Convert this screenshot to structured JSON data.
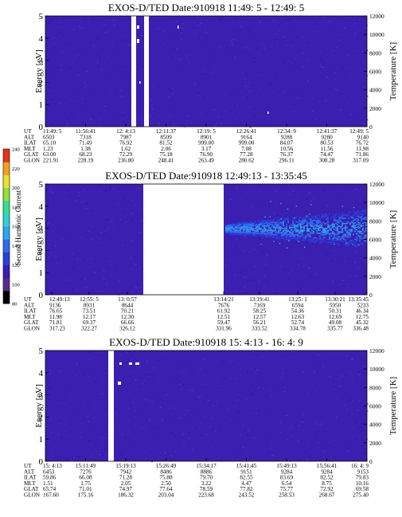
{
  "colors": {
    "background_cell": "#3a1fb0",
    "gap": "#ffffff",
    "scale": [
      "#000000",
      "#5a2b8f",
      "#3a1fb0",
      "#2a3fe0",
      "#2f6cf0",
      "#2aa8f0",
      "#2ed3d0",
      "#32e08a",
      "#8fe23a",
      "#e8e22a",
      "#f0a21e",
      "#e8321a"
    ]
  },
  "colorbar": {
    "label": "Second Harmonic Current",
    "ticks": [
      "80",
      "100",
      "120",
      "140",
      "160",
      "180",
      "200",
      "220",
      "240"
    ]
  },
  "panels": [
    {
      "title": "EXOS-D/TED   Date:910918   11:49: 5 - 12:49: 5",
      "ylabel": "Energy [eV]",
      "y2label": "Temperature [K]",
      "yticks": [
        "0",
        "1",
        "2",
        "3",
        "4",
        "5"
      ],
      "y2ticks": [
        "0",
        "2000",
        "4000",
        "6000",
        "8000",
        "10000",
        "12000"
      ],
      "row_labels": [
        "UT",
        "ALT",
        "ILAT",
        "MLT",
        "GLAT",
        "GLON"
      ],
      "columns": [
        [
          "11:49: 5",
          "6503",
          "65.10",
          "1.23",
          "63.00",
          "221.91"
        ],
        [
          "11:56:41",
          "7318",
          "71.49",
          "1.38",
          "68.23",
          "228.19"
        ],
        [
          "12: 4:13",
          "7987",
          "76.92",
          "1.62",
          "72.29",
          "236.80"
        ],
        [
          "12:11:37",
          "8509",
          "81.52",
          "2.06",
          "75.18",
          "248.41"
        ],
        [
          "12:19: 5",
          "8901",
          "999.00",
          "3.17",
          "76.90",
          "263.49"
        ],
        [
          "12:26:41",
          "9164",
          "999.00",
          "7.08",
          "77.28",
          "280.62"
        ],
        [
          "12:34: 9",
          "9288",
          "84.07",
          "10.56",
          "76.37",
          "296.11"
        ],
        [
          "12:41:37",
          "9280",
          "80.53",
          "11.56",
          "74.47",
          "308.28"
        ],
        [
          "12:49: 5",
          "9140",
          "76.72",
          "11.98",
          "71.86",
          "317.09"
        ]
      ]
    },
    {
      "title": "EXOS-D/TED   Date:910918   12:49:13 - 13:35:45",
      "ylabel": "Energy [eV]",
      "y2label": "Temperature [K]",
      "yticks": [
        "0",
        "1",
        "2",
        "3",
        "4",
        "5"
      ],
      "y2ticks": [
        "0",
        "2000",
        "4000",
        "6000",
        "8000",
        "10000",
        "12000"
      ],
      "row_labels": [
        "UT",
        "ALT",
        "ILAT",
        "MLT",
        "GLAT",
        "GLON"
      ],
      "columns": [
        [
          "12:49:13",
          "9136",
          "76.65",
          "11.98",
          "71.81",
          "317.23"
        ],
        [
          "12:55: 5",
          "8931",
          "73.51",
          "12.17",
          "69.37",
          "322.27"
        ],
        [
          "13: 0:57",
          "8644",
          "70.21",
          "12.30",
          "66.66",
          "326.12"
        ],
        [
          "13:14:21",
          "7676",
          "61.92",
          "12.51",
          "59.47",
          "331.96"
        ],
        [
          "13:19:41",
          "7169",
          "58.25",
          "12.57",
          "56.21",
          "333.52"
        ],
        [
          "13:25: 1",
          "6594",
          "54.36",
          "12.63",
          "52.74",
          "334.78"
        ],
        [
          "13:30:21",
          "5950",
          "50.31",
          "12.69",
          "49.08",
          "335.77"
        ],
        [
          "13:35:45",
          "5233",
          "46.34",
          "12.75",
          "45.32",
          "336.48"
        ]
      ]
    },
    {
      "title": "EXOS-D/TED   Date:910918   15: 4:13 - 16: 4: 9",
      "ylabel": "Energy [eV]",
      "y2label": "Temperature [K]",
      "yticks": [
        "0",
        "1",
        "2",
        "3",
        "4",
        "5"
      ],
      "y2ticks": [
        "0",
        "2000",
        "4000",
        "6000",
        "8000",
        "10000",
        "12000"
      ],
      "row_labels": [
        "UT",
        "ALT",
        "ILAT",
        "MLT",
        "GLAT",
        "GLON"
      ],
      "columns": [
        [
          "15: 4:13",
          "6453",
          "59.86",
          "1.51",
          "65.74",
          "167.60"
        ],
        [
          "15:11:49",
          "7276",
          "66.08",
          "1.75",
          "71.01",
          "175.16"
        ],
        [
          "15:19:13",
          "7942",
          "71.28",
          "2.05",
          "74.97",
          "186.32"
        ],
        [
          "15:26:49",
          "8486",
          "75.88",
          "2.50",
          "77.64",
          "203.04"
        ],
        [
          "15:34:17",
          "8886",
          "79.70",
          "3.22",
          "78.59",
          "223.68"
        ],
        [
          "15:41:45",
          "9151",
          "82.55",
          "4.47",
          "77.82",
          "243.52"
        ],
        [
          "15:49:13",
          "9284",
          "83.69",
          "6.54",
          "75.77",
          "258.53"
        ],
        [
          "15:56:41",
          "9284",
          "82.52",
          "8.75",
          "72.92",
          "268.67"
        ],
        [
          "16: 4: 9",
          "9153",
          "79.83",
          "10.16",
          "69.58",
          "275.40"
        ]
      ]
    }
  ],
  "chart_data": [
    {
      "type": "heatmap",
      "title": "EXOS-D/TED   Date:910918   11:49: 5 - 12:49: 5",
      "ylabel": "Energy [eV]",
      "y2label": "Temperature [K]",
      "ylim": [
        0,
        5
      ],
      "y2lim": [
        0,
        12000
      ],
      "x_ticks": [
        "11:49: 5",
        "11:56:41",
        "12: 4:13",
        "12:11:37",
        "12:19: 5",
        "12:26:41",
        "12:34: 9",
        "12:41:37",
        "12:49: 5"
      ],
      "data_gaps_ut": [
        [
          "12: 0:50",
          "12: 1:20"
        ],
        [
          "12: 2:10",
          "12: 2:40"
        ]
      ]
    },
    {
      "type": "heatmap",
      "title": "EXOS-D/TED   Date:910918   12:49:13 - 13:35:45",
      "ylabel": "Energy [eV]",
      "y2label": "Temperature [K]",
      "ylim": [
        0,
        5
      ],
      "y2lim": [
        0,
        12000
      ],
      "x_ticks": [
        "12:49:13",
        "12:55: 5",
        "13: 0:57",
        "13:14:21",
        "13:19:41",
        "13:25: 1",
        "13:30:21",
        "13:35:45"
      ],
      "data_gaps_ut": [
        [
          "13: 0:57",
          "13:14:21"
        ]
      ],
      "feature": {
        "energy_center_ev": 3.0,
        "energy_halfwidth_ev": 0.55,
        "onset_ut": "13:19:41"
      }
    },
    {
      "type": "heatmap",
      "title": "EXOS-D/TED   Date:910918   15: 4:13 - 16: 4: 9",
      "ylabel": "Energy [eV]",
      "y2label": "Temperature [K]",
      "ylim": [
        0,
        5
      ],
      "y2lim": [
        0,
        12000
      ],
      "x_ticks": [
        "15: 4:13",
        "15:11:49",
        "15:19:13",
        "15:26:49",
        "15:34:17",
        "15:41:45",
        "15:49:13",
        "15:56:41",
        "16: 4: 9"
      ],
      "data_gaps_ut": [
        [
          "15:15:00",
          "15:15:40"
        ]
      ]
    }
  ]
}
